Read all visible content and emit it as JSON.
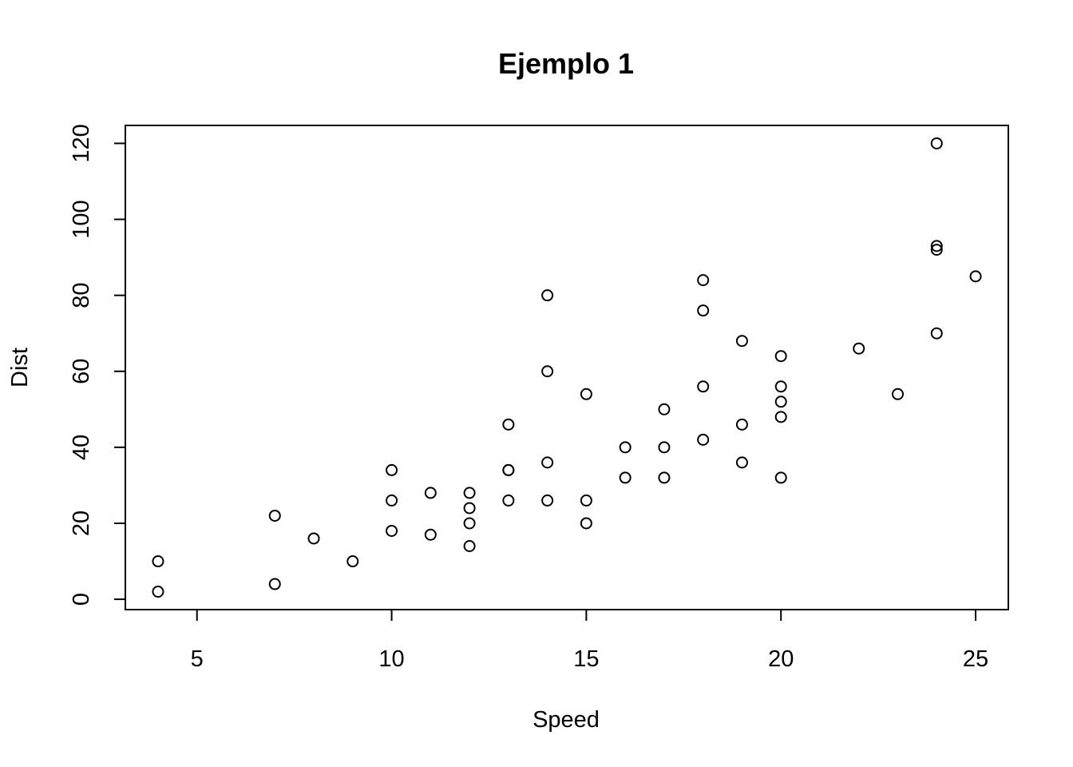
{
  "chart_data": {
    "type": "scatter",
    "title": "Ejemplo 1",
    "xlabel": "Speed",
    "ylabel": "Dist",
    "xlim": [
      3.16,
      25.84
    ],
    "ylim": [
      -2.72,
      124.72
    ],
    "xticks": [
      5,
      10,
      15,
      20,
      25
    ],
    "yticks": [
      0,
      20,
      40,
      60,
      80,
      100,
      120
    ],
    "grid": false,
    "legend": "none",
    "point_color": "#000000",
    "x": [
      4,
      4,
      7,
      7,
      8,
      9,
      10,
      10,
      10,
      11,
      11,
      12,
      12,
      12,
      12,
      13,
      13,
      13,
      13,
      14,
      14,
      14,
      14,
      15,
      15,
      15,
      16,
      16,
      17,
      17,
      17,
      18,
      18,
      18,
      18,
      19,
      19,
      19,
      20,
      20,
      20,
      20,
      20,
      22,
      23,
      24,
      24,
      24,
      24,
      25
    ],
    "y": [
      2,
      10,
      4,
      22,
      16,
      10,
      18,
      26,
      34,
      17,
      28,
      14,
      20,
      24,
      28,
      26,
      34,
      34,
      46,
      26,
      36,
      60,
      80,
      20,
      26,
      54,
      32,
      40,
      32,
      40,
      50,
      42,
      56,
      76,
      84,
      36,
      46,
      68,
      32,
      48,
      52,
      56,
      64,
      66,
      54,
      70,
      92,
      93,
      120,
      85
    ]
  }
}
